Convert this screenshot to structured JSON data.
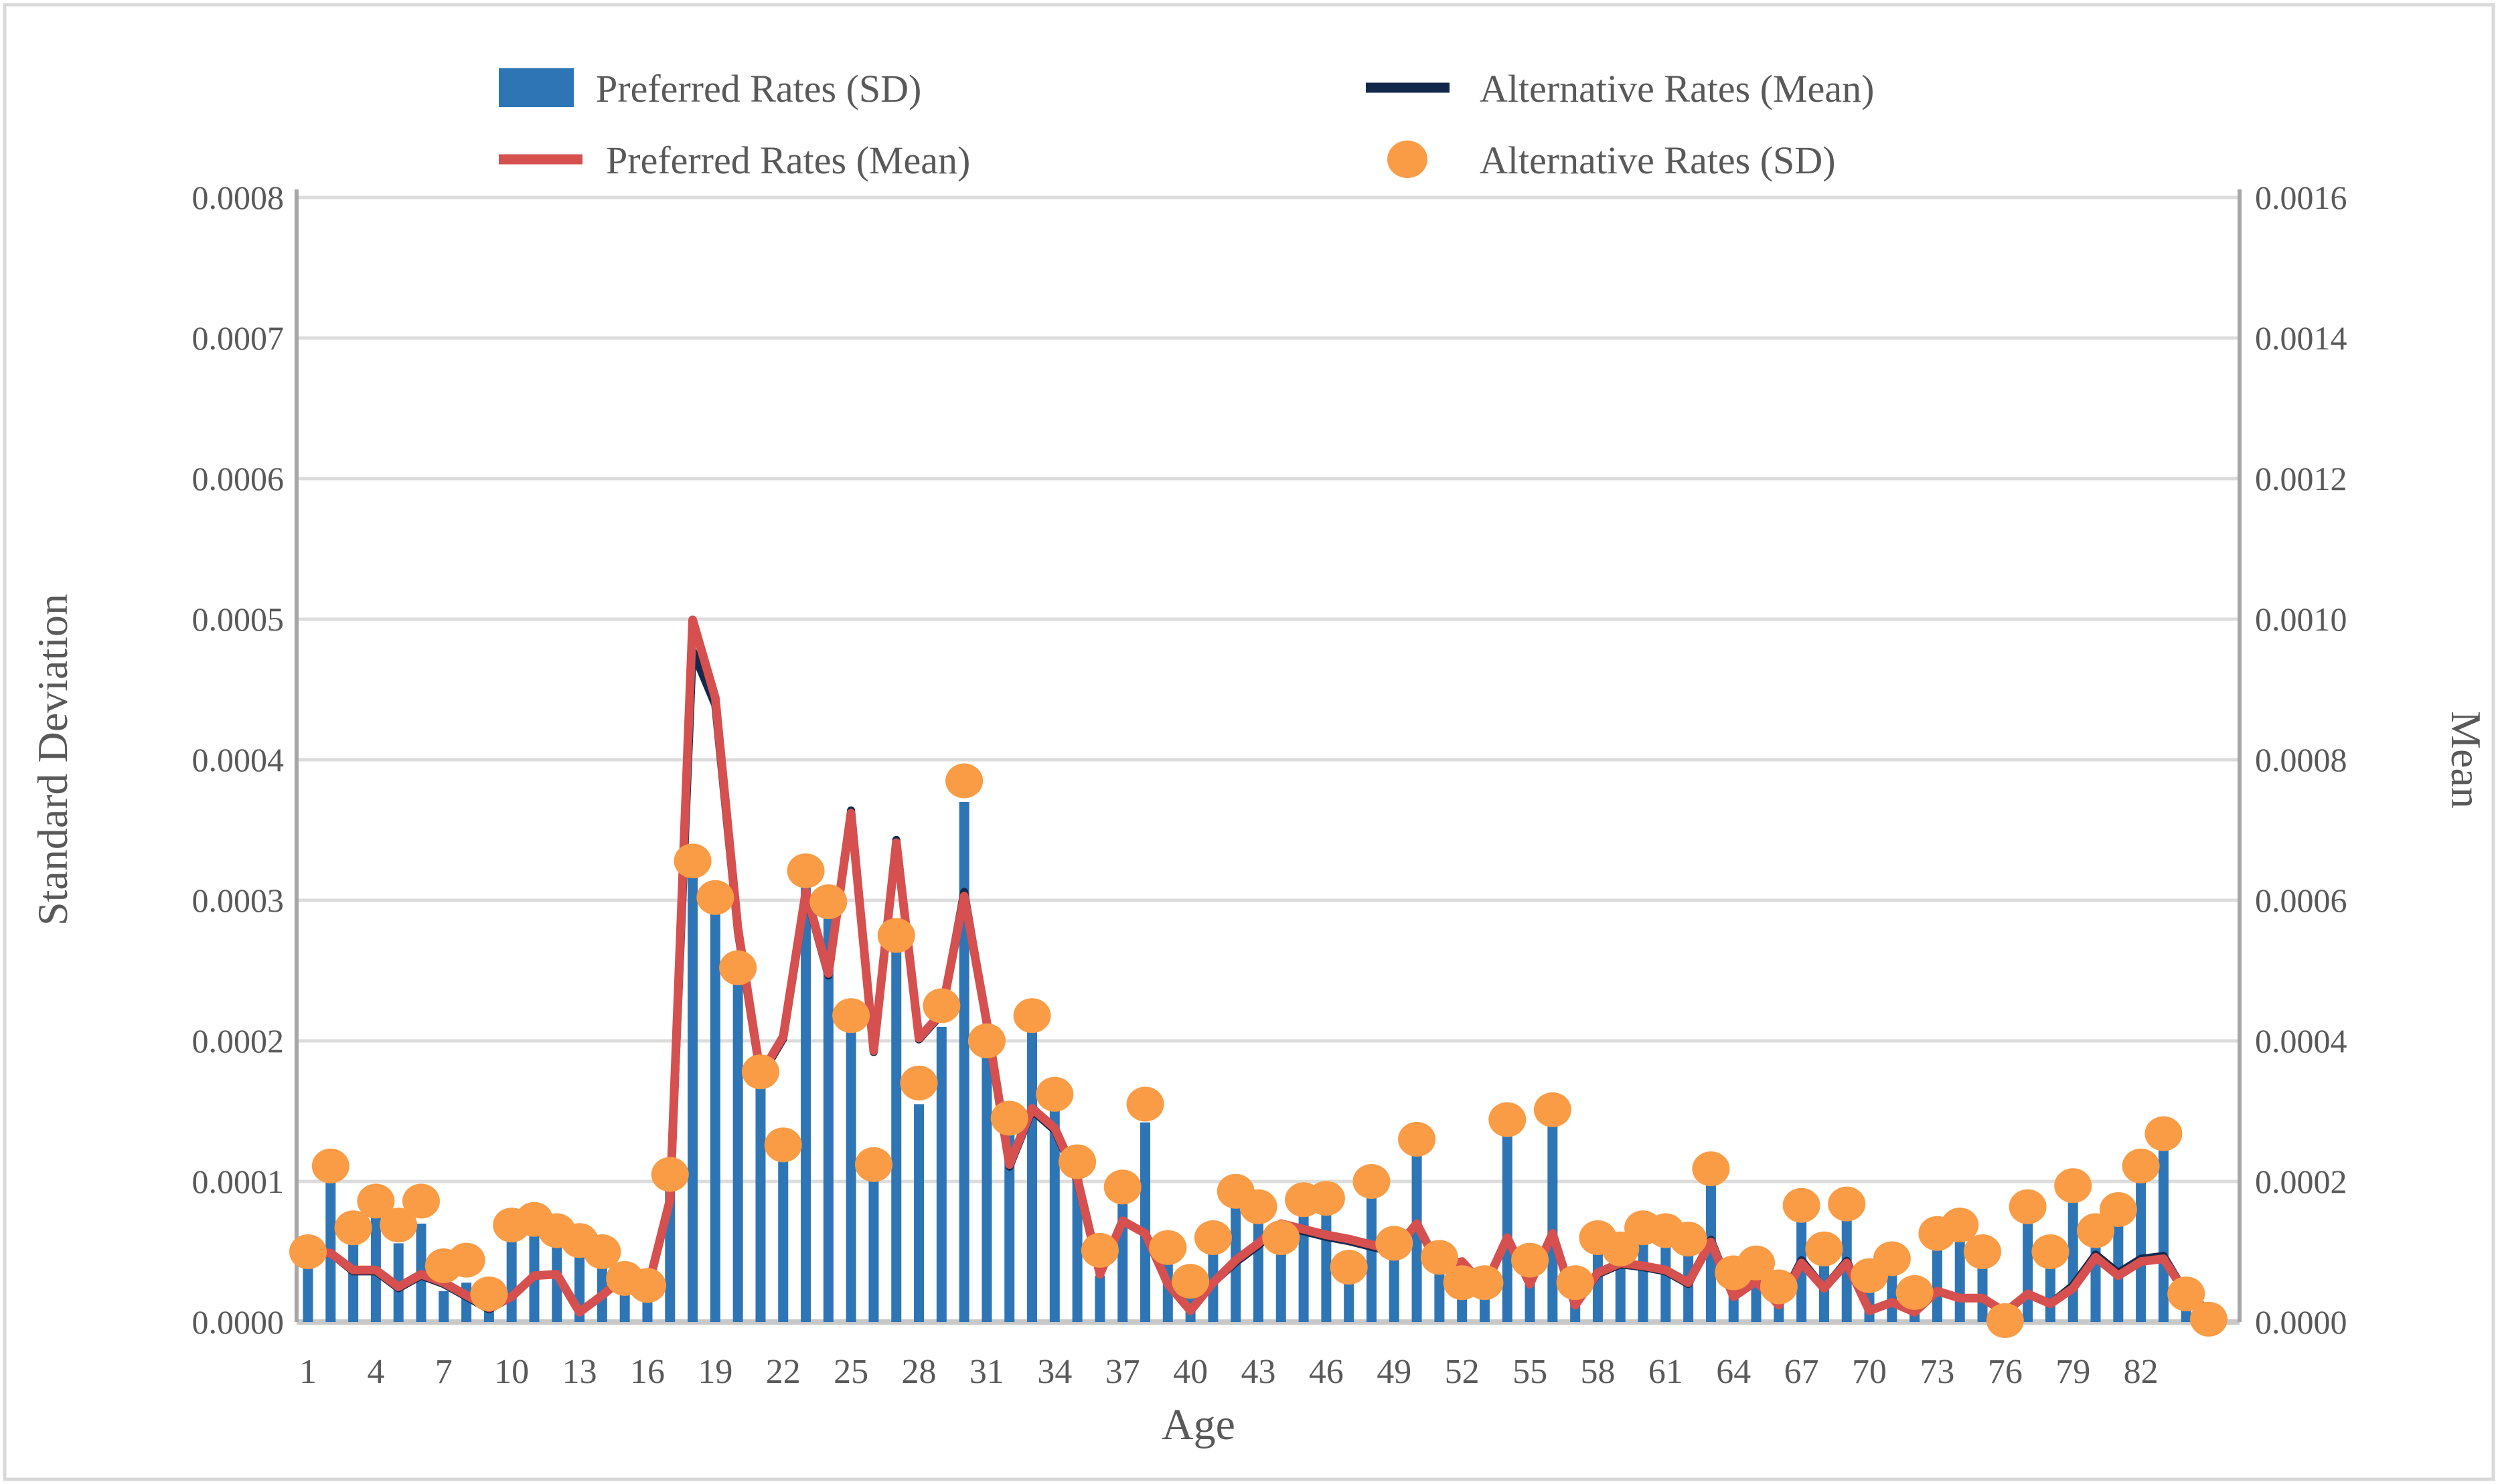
{
  "figure": {
    "background": "#ffffff",
    "border_color": "#d9d9d9"
  },
  "legend": {
    "items": [
      {
        "label": "Preferred Rates (SD)",
        "swatch": "bar-swatch",
        "color": "#2E75B6"
      },
      {
        "label": "Alternative Rates (Mean)",
        "swatch": "line-swatch",
        "color": "#13294B"
      },
      {
        "label": "Preferred Rates (Mean)",
        "swatch": "line-swatch",
        "color": "#D5504E"
      },
      {
        "label": "Alternative Rates (SD)",
        "swatch": "dot-swatch",
        "color": "#F99C45"
      }
    ]
  },
  "chart_data": {
    "type": "combo-bar-line-scatter",
    "xlabel": "Age",
    "ylabel_left": "Standard Deviation",
    "ylabel_right": "Mean",
    "ylim_left": [
      0,
      0.0008
    ],
    "ylim_right": [
      0,
      0.0016
    ],
    "grid": "horizontal",
    "x_tick_labels": [
      "1",
      "4",
      "7",
      "10",
      "13",
      "16",
      "19",
      "22",
      "25",
      "28",
      "31",
      "34",
      "37",
      "40",
      "43",
      "46",
      "49",
      "52",
      "55",
      "58",
      "61",
      "64",
      "67",
      "70",
      "73",
      "76",
      "79",
      "82"
    ],
    "left_tick_labels": [
      "0.0000",
      "0.0001",
      "0.0002",
      "0.0003",
      "0.0004",
      "0.0005",
      "0.0006",
      "0.0007",
      "0.0008"
    ],
    "right_tick_labels": [
      "0.0000",
      "0.0002",
      "0.0004",
      "0.0006",
      "0.0008",
      "0.0010",
      "0.0012",
      "0.0014",
      "0.0016"
    ],
    "age_start": 1,
    "series": [
      {
        "name": "Preferred Rates (SD)",
        "kind": "bar",
        "axis": "left",
        "color": "#2E75B6",
        "values": [
          4.2e-05,
          0.000103,
          5.7e-05,
          7.7e-05,
          5.6e-05,
          7e-05,
          2.2e-05,
          2.8e-05,
          1.3e-05,
          6e-05,
          6.4e-05,
          5.5e-05,
          5e-05,
          4.4e-05,
          2.6e-05,
          2.2e-05,
          9.5e-05,
          0.000319,
          0.000292,
          0.000242,
          0.000169,
          0.000117,
          0.000309,
          0.000287,
          0.000208,
          0.000104,
          0.000264,
          0.000155,
          0.00021,
          0.00037,
          0.00019,
          0.000134,
          0.000206,
          0.00015,
          0.000104,
          3.3e-05,
          8.4e-05,
          0.000142,
          4.4e-05,
          1.9e-05,
          5e-05,
          8.3e-05,
          7.2e-05,
          5.1e-05,
          7.7e-05,
          7.9e-05,
          3.2e-05,
          9e-05,
          4.8e-05,
          0.000121,
          3.7e-05,
          2.1e-05,
          2e-05,
          0.000133,
          3.5e-05,
          0.000142,
          2e-05,
          5.1e-05,
          4.5e-05,
          5.9e-05,
          5.7e-05,
          5.1e-05,
          9.8e-05,
          2.8e-05,
          3.3e-05,
          1.8e-05,
          7.4e-05,
          4.5e-05,
          7.6e-05,
          2.7e-05,
          3.5e-05,
          1.3e-05,
          5.4e-05,
          6e-05,
          4.1e-05,
          2e-06,
          7.2e-05,
          4e-05,
          8.6e-05,
          5.7e-05,
          7.2e-05,
          0.000102,
          0.000122,
          1.4e-05,
          5e-06
        ]
      },
      {
        "name": "Alternative Rates (SD)",
        "kind": "scatter",
        "axis": "left",
        "color": "#F99C45",
        "values": [
          5e-05,
          0.000111,
          6.7e-05,
          8.6e-05,
          6.9e-05,
          8.6e-05,
          4e-05,
          4.4e-05,
          2e-05,
          6.9e-05,
          7.3e-05,
          6.5e-05,
          5.8e-05,
          5e-05,
          3.1e-05,
          2.6e-05,
          0.000105,
          0.000328,
          0.000302,
          0.000252,
          0.000178,
          0.000126,
          0.000321,
          0.000299,
          0.000218,
          0.000112,
          0.000275,
          0.00017,
          0.000225,
          0.000385,
          0.0002,
          0.000145,
          0.000218,
          0.000162,
          0.000114,
          5.1e-05,
          9.6e-05,
          0.000155,
          5.3e-05,
          2.9e-05,
          6e-05,
          9.3e-05,
          8.2e-05,
          6e-05,
          8.7e-05,
          8.8e-05,
          3.9e-05,
          0.0001,
          5.6e-05,
          0.00013,
          4.6e-05,
          2.8e-05,
          2.8e-05,
          0.000144,
          4.4e-05,
          0.000151,
          2.8e-05,
          6e-05,
          5.2e-05,
          6.7e-05,
          6.5e-05,
          5.9e-05,
          0.000109,
          3.5e-05,
          4.2e-05,
          2.5e-05,
          8.3e-05,
          5.2e-05,
          8.4e-05,
          3.3e-05,
          4.5e-05,
          2.1e-05,
          6.3e-05,
          6.9e-05,
          5e-05,
          1e-06,
          8.2e-05,
          5e-05,
          9.7e-05,
          6.5e-05,
          8e-05,
          0.000111,
          0.000134,
          2e-05,
          2e-06
        ]
      },
      {
        "name": "Preferred Rates (Mean)",
        "kind": "line",
        "axis": "right",
        "color": "#D5504E",
        "values": [
          0.0001,
          9.8e-05,
          7.4e-05,
          7.4e-05,
          5e-05,
          6.8e-05,
          5.6e-05,
          3.8e-05,
          2e-05,
          3.6e-05,
          6.6e-05,
          6.8e-05,
          1.4e-05,
          3.8e-05,
          6.4e-05,
          4.6e-05,
          0.000174,
          0.000999,
          0.000888,
          0.00056,
          0.000352,
          0.000406,
          0.000612,
          0.000496,
          0.000724,
          0.000386,
          0.000682,
          0.000404,
          0.00044,
          0.000606,
          0.000426,
          0.000224,
          0.000304,
          0.000276,
          0.000204,
          6.8e-05,
          0.000144,
          0.000126,
          5.4e-05,
          1.6e-05,
          5.6e-05,
          8.8e-05,
          0.000112,
          0.00014,
          0.000132,
          0.000124,
          0.000118,
          0.00011,
          0.000102,
          0.00014,
          7.8e-05,
          8.6e-05,
          5e-05,
          0.00012,
          5.4e-05,
          0.000126,
          2.4e-05,
          7e-05,
          8.4e-05,
          8e-05,
          7.4e-05,
          5.6e-05,
          0.000114,
          3.6e-05,
          5.8e-05,
          2.4e-05,
          8.4e-05,
          4.8e-05,
          8.4e-05,
          1.6e-05,
          2.8e-05,
          1.4e-05,
          4.4e-05,
          3.4e-05,
          3.4e-05,
          1.4e-05,
          4e-05,
          2.6e-05,
          4.8e-05,
          9.2e-05,
          6.6e-05,
          8.6e-05,
          9e-05,
          4e-05,
          1.6e-05
        ]
      },
      {
        "name": "Alternative Rates (Mean)",
        "kind": "line",
        "axis": "right",
        "color": "#13294B",
        "values": [
          0.0001,
          9.8e-05,
          7.2e-05,
          7.2e-05,
          4.8e-05,
          6.6e-05,
          5.4e-05,
          3.6e-05,
          1.8e-05,
          3.6e-05,
          6.6e-05,
          6.8e-05,
          1.4e-05,
          3.8e-05,
          6.4e-05,
          4.6e-05,
          0.000174,
          0.000955,
          0.000878,
          0.000555,
          0.000349,
          0.000403,
          0.000609,
          0.000493,
          0.000728,
          0.000384,
          0.000686,
          0.000402,
          0.000438,
          0.000612,
          0.000423,
          0.000221,
          0.000301,
          0.000273,
          0.000201,
          6.8e-05,
          0.000144,
          0.000126,
          5.4e-05,
          1.6e-05,
          5.6e-05,
          8.5e-05,
          0.000109,
          0.000137,
          0.000129,
          0.000121,
          0.000115,
          0.000107,
          9.9e-05,
          0.00014,
          7.8e-05,
          8.6e-05,
          5e-05,
          0.00012,
          5.4e-05,
          0.000126,
          2.4e-05,
          6.8e-05,
          8.2e-05,
          7.8e-05,
          7.2e-05,
          5.4e-05,
          0.000117,
          3.6e-05,
          5.8e-05,
          2.4e-05,
          8.8e-05,
          4.8e-05,
          8.7e-05,
          1.6e-05,
          2.8e-05,
          1.4e-05,
          4.4e-05,
          3.4e-05,
          3.4e-05,
          1.4e-05,
          4e-05,
          2.6e-05,
          5.2e-05,
          9.6e-05,
          7e-05,
          9e-05,
          9.4e-05,
          4e-05,
          1.6e-05
        ]
      }
    ]
  },
  "style": {
    "grid_color": "#dcdcdc",
    "axis_line_color": "#a6a6a6",
    "zero_line_color": "#c8c8c8",
    "text_color": "#595959"
  }
}
